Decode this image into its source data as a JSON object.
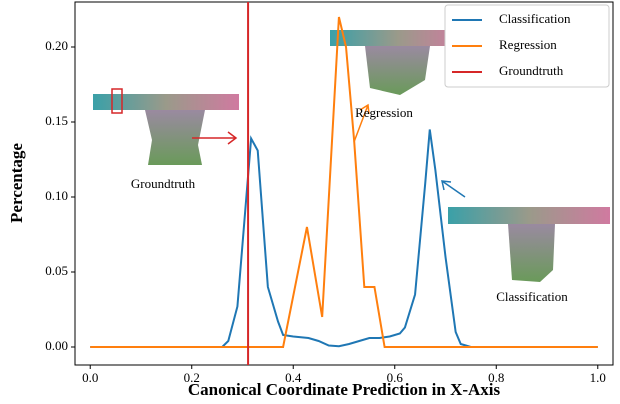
{
  "chart_data": {
    "type": "line",
    "xlabel": "Canonical Coordinate Prediction in X-Axis",
    "ylabel": "Percentage",
    "xlim": [
      -0.03,
      1.03
    ],
    "ylim": [
      -0.012,
      0.23
    ],
    "xticks": [
      {
        "value": 0,
        "label": "0.0"
      },
      {
        "value": 0.2,
        "label": "0.2"
      },
      {
        "value": 0.4,
        "label": "0.4"
      },
      {
        "value": 0.6,
        "label": "0.6"
      },
      {
        "value": 0.8,
        "label": "0.8"
      },
      {
        "value": 1,
        "label": "1.0"
      }
    ],
    "yticks": [
      {
        "value": 0,
        "label": "0.00"
      },
      {
        "value": 0.05,
        "label": "0.05"
      },
      {
        "value": 0.1,
        "label": "0.10"
      },
      {
        "value": 0.15,
        "label": "0.15"
      },
      {
        "value": 0.2,
        "label": "0.20"
      }
    ],
    "legend": "upper right",
    "series": [
      {
        "name": "Classification",
        "color": "#1f77b4",
        "x": [
          0,
          0.26,
          0.272,
          0.29,
          0.317,
          0.33,
          0.35,
          0.37,
          0.38,
          0.4,
          0.43,
          0.45,
          0.47,
          0.49,
          0.51,
          0.53,
          0.55,
          0.57,
          0.59,
          0.61,
          0.62,
          0.64,
          0.66,
          0.669,
          0.68,
          0.7,
          0.72,
          0.73,
          0.75,
          1.0
        ],
        "values": [
          0,
          0,
          0.004,
          0.027,
          0.139,
          0.131,
          0.04,
          0.017,
          0.008,
          0.007,
          0.006,
          0.004,
          0.001,
          0.0005,
          0.002,
          0.004,
          0.006,
          0.006,
          0.007,
          0.009,
          0.013,
          0.035,
          0.109,
          0.145,
          0.118,
          0.06,
          0.01,
          0.002,
          0,
          0
        ]
      },
      {
        "name": "Regression",
        "color": "#ff7f0e",
        "x": [
          0,
          0.38,
          0.427,
          0.457,
          0.49,
          0.504,
          0.52,
          0.54,
          0.56,
          0.58,
          1.0
        ],
        "values": [
          0,
          0,
          0.08,
          0.02,
          0.22,
          0.2,
          0.1375,
          0.04,
          0.04,
          0,
          0
        ]
      },
      {
        "name": "Groundtruth",
        "color": "#d62728",
        "vline": 0.311
      }
    ],
    "annotations": [
      {
        "text": "Groundtruth"
      },
      {
        "text": "Regression"
      },
      {
        "text": "Classification"
      }
    ]
  }
}
